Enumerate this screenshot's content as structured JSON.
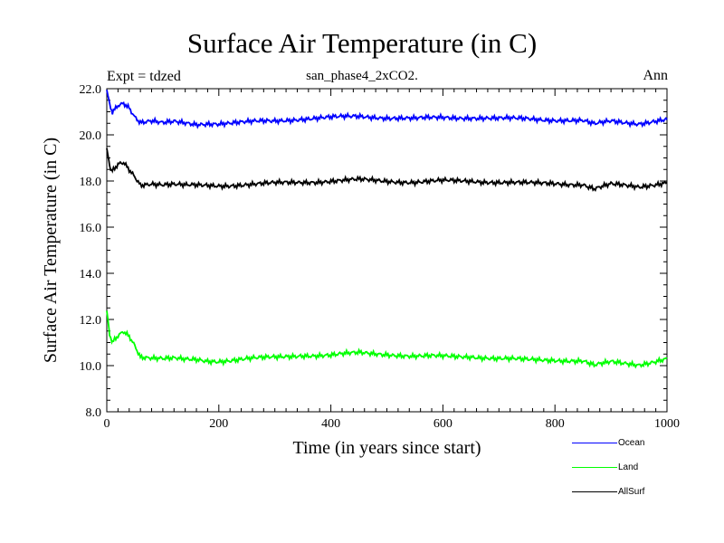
{
  "header": {
    "title": "Surface Air Temperature (in C)",
    "subtitle": "san_phase4_2xCO2.",
    "left_note": "Expt = tdzed",
    "right_note": "Ann"
  },
  "chart_data": {
    "type": "line",
    "title": "Surface Air Temperature (in C)",
    "subtitle": "san_phase4_2xCO2.",
    "xlabel": "Time (in years since start)",
    "ylabel": "Surface Air Temperature (in C)",
    "xlim": [
      0,
      1000
    ],
    "ylim": [
      8.0,
      22.0
    ],
    "x_ticks": [
      0,
      200,
      400,
      600,
      800,
      1000
    ],
    "y_ticks": [
      "8.0",
      "10.0",
      "12.0",
      "14.0",
      "16.0",
      "18.0",
      "20.0",
      "22.0"
    ],
    "grid": false,
    "legend_position": "bottom-right",
    "series": [
      {
        "name": "Ocean",
        "color": "#0000ff",
        "x": [
          0,
          5,
          10,
          20,
          30,
          40,
          50,
          60,
          80,
          100,
          120,
          140,
          160,
          180,
          200,
          250,
          300,
          350,
          400,
          450,
          500,
          550,
          600,
          650,
          700,
          750,
          800,
          850,
          870,
          900,
          950,
          1000
        ],
        "values": [
          21.95,
          21.3,
          21.0,
          21.3,
          21.4,
          21.2,
          20.8,
          20.55,
          20.6,
          20.5,
          20.55,
          20.5,
          20.45,
          20.5,
          20.5,
          20.55,
          20.6,
          20.7,
          20.75,
          20.8,
          20.75,
          20.7,
          20.75,
          20.75,
          20.7,
          20.7,
          20.65,
          20.6,
          20.45,
          20.6,
          20.5,
          20.65
        ]
      },
      {
        "name": "Land",
        "color": "#00ff00",
        "x": [
          0,
          5,
          10,
          20,
          30,
          40,
          50,
          60,
          80,
          100,
          120,
          140,
          160,
          180,
          200,
          250,
          300,
          350,
          400,
          450,
          500,
          550,
          600,
          650,
          700,
          750,
          800,
          850,
          870,
          900,
          950,
          1000
        ],
        "values": [
          12.3,
          11.4,
          11.0,
          11.3,
          11.5,
          11.3,
          10.9,
          10.4,
          10.35,
          10.3,
          10.3,
          10.25,
          10.25,
          10.2,
          10.2,
          10.3,
          10.35,
          10.45,
          10.45,
          10.55,
          10.5,
          10.4,
          10.4,
          10.4,
          10.3,
          10.25,
          10.25,
          10.2,
          10.0,
          10.15,
          10.05,
          10.3
        ]
      },
      {
        "name": "AllSurf",
        "color": "#000000",
        "x": [
          0,
          5,
          10,
          20,
          30,
          40,
          50,
          60,
          80,
          100,
          120,
          140,
          160,
          180,
          200,
          250,
          300,
          350,
          400,
          450,
          500,
          550,
          600,
          650,
          700,
          750,
          800,
          850,
          870,
          900,
          950,
          1000
        ],
        "values": [
          19.35,
          18.7,
          18.4,
          18.7,
          18.8,
          18.5,
          18.2,
          17.85,
          17.9,
          17.85,
          17.85,
          17.8,
          17.8,
          17.8,
          17.8,
          17.85,
          17.9,
          17.95,
          18.0,
          18.05,
          18.0,
          17.95,
          18.0,
          18.0,
          17.95,
          17.9,
          17.9,
          17.85,
          17.65,
          17.85,
          17.75,
          17.95
        ]
      }
    ]
  }
}
